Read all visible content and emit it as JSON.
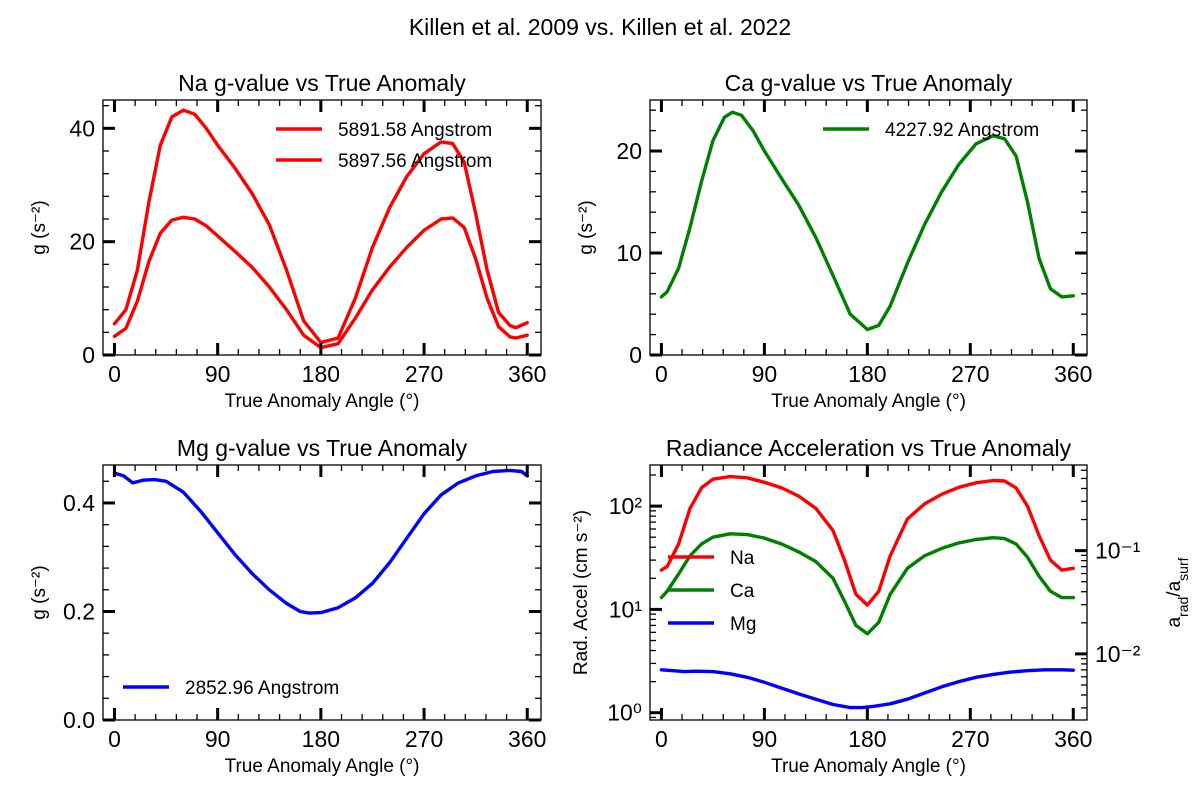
{
  "figure": {
    "title": "Killen et al. 2009 vs. Killen et al. 2022"
  },
  "colors": {
    "na": "#ff0000",
    "ca": "#008000",
    "mg": "#0000ff"
  },
  "chart_data": [
    {
      "id": "na",
      "type": "line",
      "title": "Na g-value vs True Anomaly",
      "xlabel": "True Anomaly Angle (°)",
      "ylabel": "g (s⁻²)",
      "xlim": [
        -10,
        372
      ],
      "ylim": [
        0,
        45
      ],
      "xticks": [
        0,
        90,
        180,
        270,
        360
      ],
      "yticks": [
        0,
        20,
        40
      ],
      "legend": "top-right",
      "series": [
        {
          "name": "5891.58 Angstrom",
          "color": "#ff0000",
          "x": [
            0,
            10,
            20,
            30,
            40,
            50,
            60,
            70,
            80,
            90,
            105,
            120,
            135,
            150,
            165,
            180,
            195,
            210,
            225,
            240,
            255,
            270,
            285,
            295,
            305,
            315,
            325,
            335,
            345,
            350,
            360
          ],
          "y": [
            5.5,
            8,
            15,
            27,
            37,
            42,
            43.2,
            42.5,
            40,
            37,
            33,
            28.5,
            23,
            15,
            6,
            2.2,
            3,
            10,
            19,
            26,
            31.5,
            35.5,
            37.6,
            37.3,
            34,
            25,
            15,
            7.5,
            5.2,
            4.8,
            5.7
          ]
        },
        {
          "name": "5897.56 Angstrom",
          "color": "#ff0000",
          "x": [
            0,
            10,
            20,
            30,
            40,
            50,
            60,
            70,
            80,
            90,
            105,
            120,
            135,
            150,
            165,
            180,
            195,
            210,
            225,
            240,
            255,
            270,
            285,
            295,
            305,
            315,
            325,
            335,
            345,
            350,
            360
          ],
          "y": [
            3.3,
            4.7,
            9.5,
            16.5,
            21.5,
            23.8,
            24.3,
            24,
            22.8,
            21,
            18.3,
            15.5,
            12,
            8,
            3.5,
            1.3,
            2,
            6.5,
            11.5,
            15.5,
            19,
            22,
            24,
            24.2,
            22.5,
            17,
            10,
            5,
            3.2,
            3,
            3.5
          ]
        }
      ]
    },
    {
      "id": "ca",
      "type": "line",
      "title": "Ca g-value vs True Anomaly",
      "xlabel": "True Anomaly Angle (°)",
      "ylabel": "g (s⁻²)",
      "xlim": [
        -10,
        372
      ],
      "ylim": [
        0,
        25
      ],
      "xticks": [
        0,
        90,
        180,
        270,
        360
      ],
      "yticks": [
        0,
        10,
        20
      ],
      "legend": "top-right",
      "series": [
        {
          "name": "4227.92 Angstrom",
          "color": "#008000",
          "x": [
            0,
            5,
            15,
            25,
            35,
            45,
            55,
            62,
            70,
            80,
            90,
            105,
            120,
            135,
            150,
            165,
            180,
            190,
            200,
            215,
            230,
            245,
            260,
            275,
            290,
            300,
            310,
            320,
            330,
            340,
            350,
            360
          ],
          "y": [
            5.7,
            6.2,
            8.5,
            12.5,
            17,
            21,
            23.3,
            23.8,
            23.5,
            22,
            20,
            17.3,
            14.7,
            11.5,
            7.8,
            4,
            2.5,
            2.9,
            4.8,
            9,
            12.8,
            16,
            18.7,
            20.7,
            21.5,
            21.2,
            19.5,
            15,
            9.5,
            6.5,
            5.7,
            5.8
          ]
        }
      ]
    },
    {
      "id": "mg",
      "type": "line",
      "title": "Mg g-value vs True Anomaly",
      "xlabel": "True Anomaly Angle (°)",
      "ylabel": "g (s⁻²)",
      "xlim": [
        -10,
        372
      ],
      "ylim": [
        0,
        0.47
      ],
      "xticks": [
        0,
        90,
        180,
        270,
        360
      ],
      "yticks": [
        0.0,
        0.2,
        0.4
      ],
      "legend": "bottom-left",
      "series": [
        {
          "name": "2852.96 Angstrom",
          "color": "#0000ff",
          "x": [
            0,
            8,
            16,
            25,
            35,
            45,
            60,
            75,
            90,
            105,
            120,
            135,
            150,
            162,
            170,
            180,
            195,
            210,
            225,
            240,
            255,
            270,
            285,
            300,
            315,
            330,
            345,
            355,
            360
          ],
          "y": [
            0.455,
            0.45,
            0.437,
            0.442,
            0.443,
            0.44,
            0.42,
            0.385,
            0.345,
            0.305,
            0.27,
            0.24,
            0.215,
            0.2,
            0.197,
            0.198,
            0.207,
            0.225,
            0.252,
            0.29,
            0.335,
            0.38,
            0.415,
            0.437,
            0.45,
            0.458,
            0.46,
            0.458,
            0.45
          ]
        }
      ]
    },
    {
      "id": "rad",
      "type": "line",
      "title": "Radiance Acceleration vs True Anomaly",
      "xlabel": "True Anomaly Angle (°)",
      "ylabel": "Rad. Accel (cm s⁻²)",
      "y2label": "a_rad/a_surf",
      "yscale": "log",
      "xlim": [
        -10,
        372
      ],
      "ylim": [
        0.85,
        250
      ],
      "y2lim": [
        0.00229,
        0.675
      ],
      "xticks": [
        0,
        90,
        180,
        270,
        360
      ],
      "ytick_labels": [
        "10⁰",
        "10¹",
        "10²"
      ],
      "y2tick_labels": [
        "10⁻²",
        "10⁻¹"
      ],
      "legend": "center-left",
      "series": [
        {
          "name": "Na",
          "color": "#ff0000",
          "x": [
            0,
            5,
            15,
            25,
            35,
            45,
            60,
            75,
            90,
            105,
            120,
            135,
            150,
            160,
            170,
            180,
            190,
            200,
            215,
            230,
            245,
            260,
            275,
            290,
            300,
            310,
            320,
            330,
            340,
            350,
            360
          ],
          "y": [
            24,
            26,
            43,
            95,
            150,
            182,
            193,
            188,
            170,
            150,
            125,
            95,
            58,
            30,
            14,
            11,
            15,
            33,
            75,
            105,
            130,
            152,
            168,
            177,
            175,
            150,
            100,
            52,
            30,
            24,
            25
          ]
        },
        {
          "name": "Ca",
          "color": "#008000",
          "x": [
            0,
            5,
            15,
            25,
            35,
            45,
            60,
            75,
            90,
            105,
            120,
            135,
            150,
            160,
            170,
            180,
            190,
            200,
            215,
            230,
            245,
            260,
            275,
            290,
            300,
            310,
            320,
            330,
            340,
            350,
            360
          ],
          "y": [
            13,
            15,
            22,
            33,
            43,
            50,
            54,
            53,
            49,
            43,
            36,
            29,
            20,
            12,
            7,
            5.8,
            7.5,
            14,
            25,
            33,
            39,
            44,
            47.5,
            49.5,
            48.5,
            43,
            32,
            21,
            15,
            13,
            13
          ]
        },
        {
          "name": "Mg",
          "color": "#0000ff",
          "x": [
            0,
            10,
            20,
            30,
            45,
            60,
            75,
            90,
            105,
            120,
            135,
            150,
            165,
            175,
            185,
            200,
            215,
            230,
            245,
            260,
            275,
            290,
            305,
            320,
            335,
            350,
            360
          ],
          "y": [
            2.6,
            2.55,
            2.5,
            2.52,
            2.5,
            2.38,
            2.2,
            1.97,
            1.73,
            1.52,
            1.35,
            1.2,
            1.12,
            1.12,
            1.15,
            1.22,
            1.35,
            1.55,
            1.78,
            2.0,
            2.2,
            2.35,
            2.47,
            2.55,
            2.6,
            2.6,
            2.58
          ]
        }
      ]
    }
  ]
}
